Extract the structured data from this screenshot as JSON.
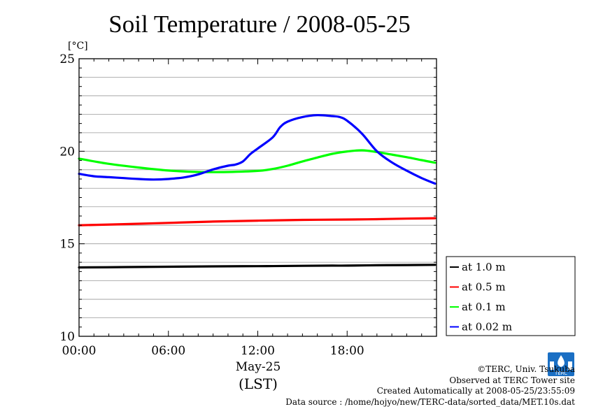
{
  "chart_data": {
    "type": "line",
    "title": "Soil Temperature / 2008-05-25",
    "ylabel": "[°C]",
    "xlabel_date": "May-25",
    "xlabel_zone": "(LST)",
    "xlim": [
      0,
      24
    ],
    "ylim": [
      10,
      25
    ],
    "x_ticks": [
      0,
      6,
      12,
      18
    ],
    "x_tick_labels": [
      "00:00",
      "06:00",
      "12:00",
      "18:00"
    ],
    "y_major_ticks": [
      10,
      15,
      20,
      25
    ],
    "y_grid_step": 1,
    "grid": true,
    "legend_position": "right",
    "series": [
      {
        "name": "at 1.0 m",
        "color": "#000000",
        "x": [
          0,
          3,
          6,
          9,
          12,
          15,
          17,
          18,
          20,
          22,
          23.9
        ],
        "y": [
          13.72,
          13.74,
          13.76,
          13.78,
          13.79,
          13.81,
          13.82,
          13.82,
          13.84,
          13.85,
          13.86
        ]
      },
      {
        "name": "at 0.5 m",
        "color": "#ff0000",
        "x": [
          0,
          3,
          6,
          9,
          12,
          15,
          18,
          20,
          22,
          23.9
        ],
        "y": [
          16.0,
          16.06,
          16.13,
          16.2,
          16.25,
          16.29,
          16.31,
          16.33,
          16.36,
          16.38
        ]
      },
      {
        "name": "at 0.1 m",
        "color": "#00ff00",
        "x": [
          0,
          2,
          4,
          6,
          8,
          10,
          12,
          13,
          14,
          15,
          16,
          17,
          18,
          19,
          20,
          21,
          22,
          23,
          23.9
        ],
        "y": [
          19.6,
          19.32,
          19.12,
          18.96,
          18.88,
          18.88,
          18.94,
          19.04,
          19.22,
          19.45,
          19.66,
          19.86,
          19.99,
          20.05,
          19.96,
          19.82,
          19.68,
          19.52,
          19.38
        ]
      },
      {
        "name": "at 0.02 m",
        "color": "#0000ff",
        "x": [
          0,
          1,
          2,
          3,
          4,
          5,
          6,
          7,
          8,
          9,
          10,
          10.5,
          11,
          11.5,
          12,
          13,
          13.5,
          14,
          15,
          16,
          17,
          17.5,
          18,
          19,
          20,
          21,
          22,
          23,
          23.9
        ],
        "y": [
          18.78,
          18.65,
          18.6,
          18.55,
          18.5,
          18.47,
          18.5,
          18.58,
          18.75,
          19.02,
          19.22,
          19.28,
          19.45,
          19.85,
          20.15,
          20.75,
          21.3,
          21.6,
          21.85,
          21.95,
          21.9,
          21.85,
          21.65,
          20.95,
          20.0,
          19.4,
          18.95,
          18.55,
          18.25
        ]
      }
    ]
  },
  "footer": {
    "copyright": "©TERC, Univ. Tsukuba",
    "observed": "Observed at TERC Tower site",
    "created": "Created Automatically at 2008-05-25/23:55:09",
    "source": "Data source : /home/hojyo/new/TERC-data/sorted_data/MET.10s.dat"
  },
  "logo": {
    "text": "TERC",
    "color": "#1a6fc4"
  }
}
